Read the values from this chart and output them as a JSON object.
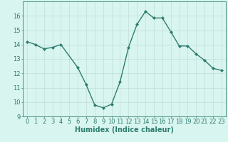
{
  "x": [
    0,
    1,
    2,
    3,
    4,
    6,
    7,
    8,
    9,
    10,
    11,
    12,
    13,
    14,
    15,
    16,
    17,
    18,
    19,
    20,
    21,
    22,
    23
  ],
  "y": [
    14.2,
    14.0,
    13.7,
    13.8,
    14.0,
    12.4,
    11.2,
    9.8,
    9.6,
    9.85,
    11.4,
    13.8,
    15.4,
    16.3,
    15.85,
    15.85,
    14.9,
    13.9,
    13.9,
    13.35,
    12.9,
    12.35,
    12.2
  ],
  "line_color": "#2e7d6e",
  "marker": "D",
  "markersize": 2.0,
  "linewidth": 1.0,
  "bg_color": "#d9f5f0",
  "grid_color": "#c0ddd8",
  "xlabel": "Humidex (Indice chaleur)",
  "xlabel_fontsize": 7,
  "xlim": [
    -0.5,
    23.5
  ],
  "ylim": [
    9,
    17.0
  ],
  "yticks": [
    9,
    10,
    11,
    12,
    13,
    14,
    15,
    16
  ],
  "xtick_labels": [
    "0",
    "1",
    "2",
    "3",
    "4",
    "5",
    "6",
    "7",
    "8",
    "9",
    "10",
    "11",
    "12",
    "13",
    "14",
    "15",
    "16",
    "17",
    "18",
    "19",
    "20",
    "21",
    "22",
    "23"
  ],
  "tick_fontsize": 6,
  "tick_color": "#2e7d6e",
  "spine_color": "#2e7d6e"
}
